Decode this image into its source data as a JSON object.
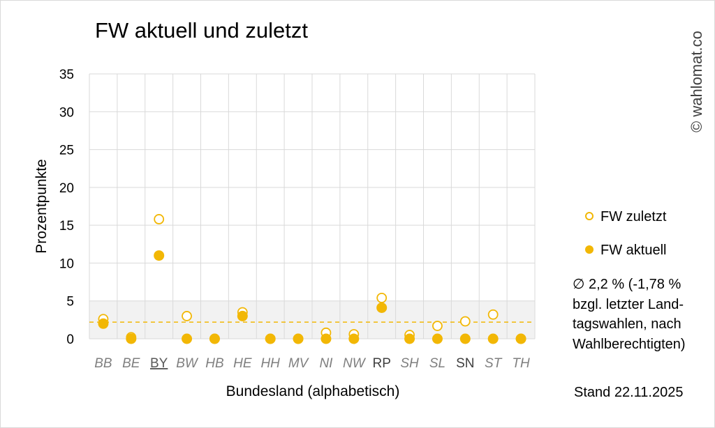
{
  "chart_data": {
    "type": "scatter",
    "title": "FW aktuell und zuletzt",
    "xlabel": "Bundesland (alphabetisch)",
    "ylabel": "Prozentpunkte",
    "ylim": [
      0,
      35
    ],
    "yticks": [
      0,
      5,
      10,
      15,
      20,
      25,
      30,
      35
    ],
    "grid": true,
    "legend_position": "right",
    "categories": [
      "BB",
      "BE",
      "BY",
      "BW",
      "HB",
      "HE",
      "HH",
      "MV",
      "NI",
      "NW",
      "RP",
      "SH",
      "SL",
      "SN",
      "ST",
      "TH"
    ],
    "category_styles": [
      "italic",
      "italic",
      "underline",
      "italic",
      "italic",
      "italic",
      "italic",
      "italic",
      "italic",
      "italic",
      "normal",
      "italic",
      "italic",
      "normal",
      "italic",
      "italic"
    ],
    "series": [
      {
        "name": "FW zuletzt",
        "marker": "hollow-circle",
        "color": "#f2b705",
        "values": [
          2.6,
          0.2,
          15.8,
          3.0,
          0.0,
          3.5,
          0.0,
          0.0,
          0.8,
          0.6,
          5.4,
          0.5,
          1.7,
          2.3,
          3.2,
          0.0
        ]
      },
      {
        "name": "FW aktuell",
        "marker": "filled-circle",
        "color": "#f2b705",
        "values": [
          2.0,
          0.0,
          11.0,
          0.0,
          0.0,
          3.0,
          0.0,
          0.0,
          0.0,
          0.0,
          4.1,
          0.0,
          0.0,
          0.0,
          0.0,
          0.0
        ]
      }
    ],
    "average_line": {
      "value": 2.2,
      "style": "dashed",
      "color": "#f2b705"
    },
    "shaded_band": {
      "from": 0,
      "to": 5,
      "color": "#f2f2f2"
    },
    "annotations": {
      "copyright": "© wahlomat.co",
      "average_note": "∅ 2,2 % (-1,78 % bzgl. letzter Land-tagswahlen, nach Wahlberechtigten)",
      "date_note": "Stand 22.11.2025"
    }
  }
}
